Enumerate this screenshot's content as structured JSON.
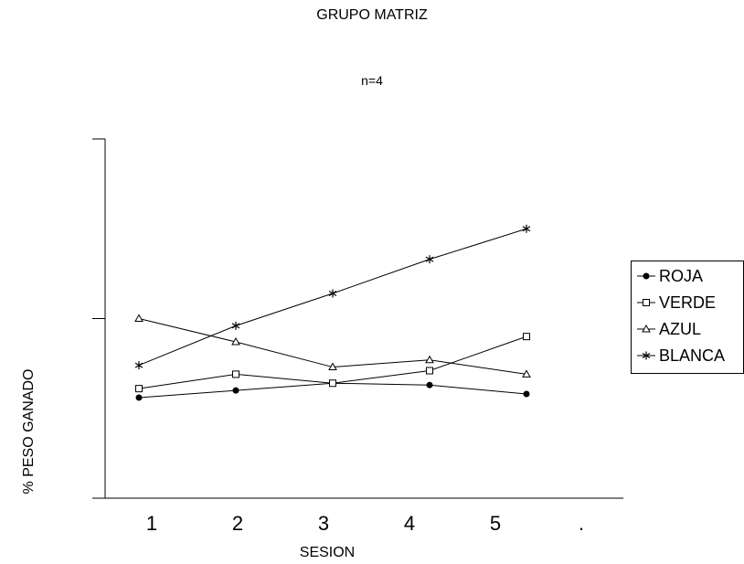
{
  "chart_data": {
    "type": "line",
    "title": "GRUPO MATRIZ",
    "subtitle": "n=4",
    "xlabel": "SESION",
    "ylabel": "% PESO GANADO",
    "categories": [
      "1",
      "2",
      "3",
      "4",
      "5",
      "."
    ],
    "ylim": [
      0,
      2
    ],
    "yticks": [
      0,
      1,
      2
    ],
    "grid": false,
    "legend": "right",
    "series": [
      {
        "name": "ROJA",
        "marker": "filled-circle",
        "color": "#000000",
        "x": [
          1,
          2,
          3,
          4,
          5
        ],
        "values": [
          0.56,
          0.6,
          0.64,
          0.63,
          0.58
        ]
      },
      {
        "name": "VERDE",
        "marker": "open-square",
        "color": "#000000",
        "x": [
          1,
          2,
          3,
          4,
          5
        ],
        "values": [
          0.61,
          0.69,
          0.64,
          0.71,
          0.9
        ]
      },
      {
        "name": "AZUL",
        "marker": "open-triangle",
        "color": "#000000",
        "x": [
          1,
          2,
          3,
          4,
          5
        ],
        "values": [
          1.0,
          0.87,
          0.73,
          0.77,
          0.69
        ]
      },
      {
        "name": "BLANCA",
        "marker": "star",
        "color": "#000000",
        "x": [
          1,
          2,
          3,
          4,
          5
        ],
        "values": [
          0.74,
          0.96,
          1.14,
          1.33,
          1.5
        ]
      }
    ]
  }
}
